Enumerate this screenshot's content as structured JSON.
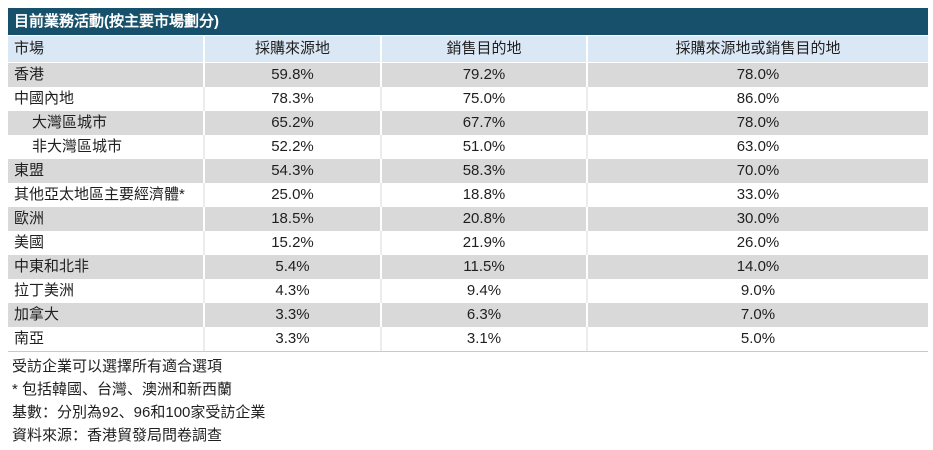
{
  "table": {
    "title": "目前業務活動(按主要市場劃分)",
    "columns": [
      "市場",
      "採購來源地",
      "銷售目的地",
      "採購來源地或銷售目的地"
    ],
    "rows": [
      {
        "market": "香港",
        "indent": false,
        "procurement": "59.8%",
        "sales": "79.2%",
        "either": "78.0%"
      },
      {
        "market": "中國內地",
        "indent": false,
        "procurement": "78.3%",
        "sales": "75.0%",
        "either": "86.0%"
      },
      {
        "market": "大灣區城市",
        "indent": true,
        "procurement": "65.2%",
        "sales": "67.7%",
        "either": "78.0%"
      },
      {
        "market": "非大灣區城市",
        "indent": true,
        "procurement": "52.2%",
        "sales": "51.0%",
        "either": "63.0%"
      },
      {
        "market": "東盟",
        "indent": false,
        "procurement": "54.3%",
        "sales": "58.3%",
        "either": "70.0%"
      },
      {
        "market": "其他亞太地區主要經濟體*",
        "indent": false,
        "procurement": "25.0%",
        "sales": "18.8%",
        "either": "33.0%"
      },
      {
        "market": "歐洲",
        "indent": false,
        "procurement": "18.5%",
        "sales": "20.8%",
        "either": "30.0%"
      },
      {
        "market": "美國",
        "indent": false,
        "procurement": "15.2%",
        "sales": "21.9%",
        "either": "26.0%"
      },
      {
        "market": "中東和北非",
        "indent": false,
        "procurement": "5.4%",
        "sales": "11.5%",
        "either": "14.0%"
      },
      {
        "market": "拉丁美洲",
        "indent": false,
        "procurement": "4.3%",
        "sales": "9.4%",
        "either": "9.0%"
      },
      {
        "market": "加拿大",
        "indent": false,
        "procurement": "3.3%",
        "sales": "6.3%",
        "either": "7.0%"
      },
      {
        "market": "南亞",
        "indent": false,
        "procurement": "3.3%",
        "sales": "3.1%",
        "either": "5.0%"
      }
    ],
    "footnotes": [
      "受訪企業可以選擇所有適合選項",
      "* 包括韓國、台灣、澳洲和新西蘭",
      "基數：分別為92、96和100家受訪企業",
      "資料來源：香港貿發局問卷調查"
    ]
  },
  "colors": {
    "title_bar_bg": "#17506a",
    "title_text": "#ffffff",
    "header_bg": "#dae7f5",
    "row_shade_bg": "#d9d9d9",
    "row_plain_bg": "#ffffff",
    "body_text": "#1f1f1f"
  }
}
